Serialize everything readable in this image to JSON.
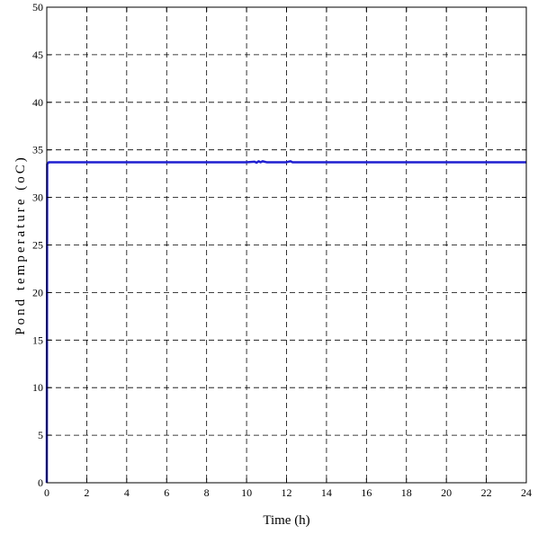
{
  "chart_data": {
    "type": "line",
    "title": "",
    "xlabel": "Time (h)",
    "ylabel": "Pond temperature (oC)",
    "xlim": [
      0,
      24
    ],
    "ylim": [
      0,
      50
    ],
    "xticks": [
      0,
      2,
      4,
      6,
      8,
      10,
      12,
      14,
      16,
      18,
      20,
      22,
      24
    ],
    "yticks": [
      0,
      5,
      10,
      15,
      20,
      25,
      30,
      35,
      40,
      45,
      50
    ],
    "grid": true,
    "grid_style": "dashed",
    "line_color": "#1f1fd1",
    "series": [
      {
        "x": [
          0,
          0.02,
          0.1,
          2,
          4,
          6,
          8,
          10,
          10.4,
          10.5,
          10.6,
          10.7,
          10.8,
          11,
          12,
          12.2,
          12.3,
          12.5,
          14,
          16,
          18,
          20,
          22,
          24
        ],
        "values": [
          0,
          33.5,
          33.7,
          33.7,
          33.7,
          33.7,
          33.7,
          33.7,
          33.75,
          33.65,
          33.8,
          33.7,
          33.8,
          33.7,
          33.7,
          33.8,
          33.7,
          33.7,
          33.7,
          33.7,
          33.7,
          33.7,
          33.7,
          33.7
        ]
      }
    ]
  }
}
